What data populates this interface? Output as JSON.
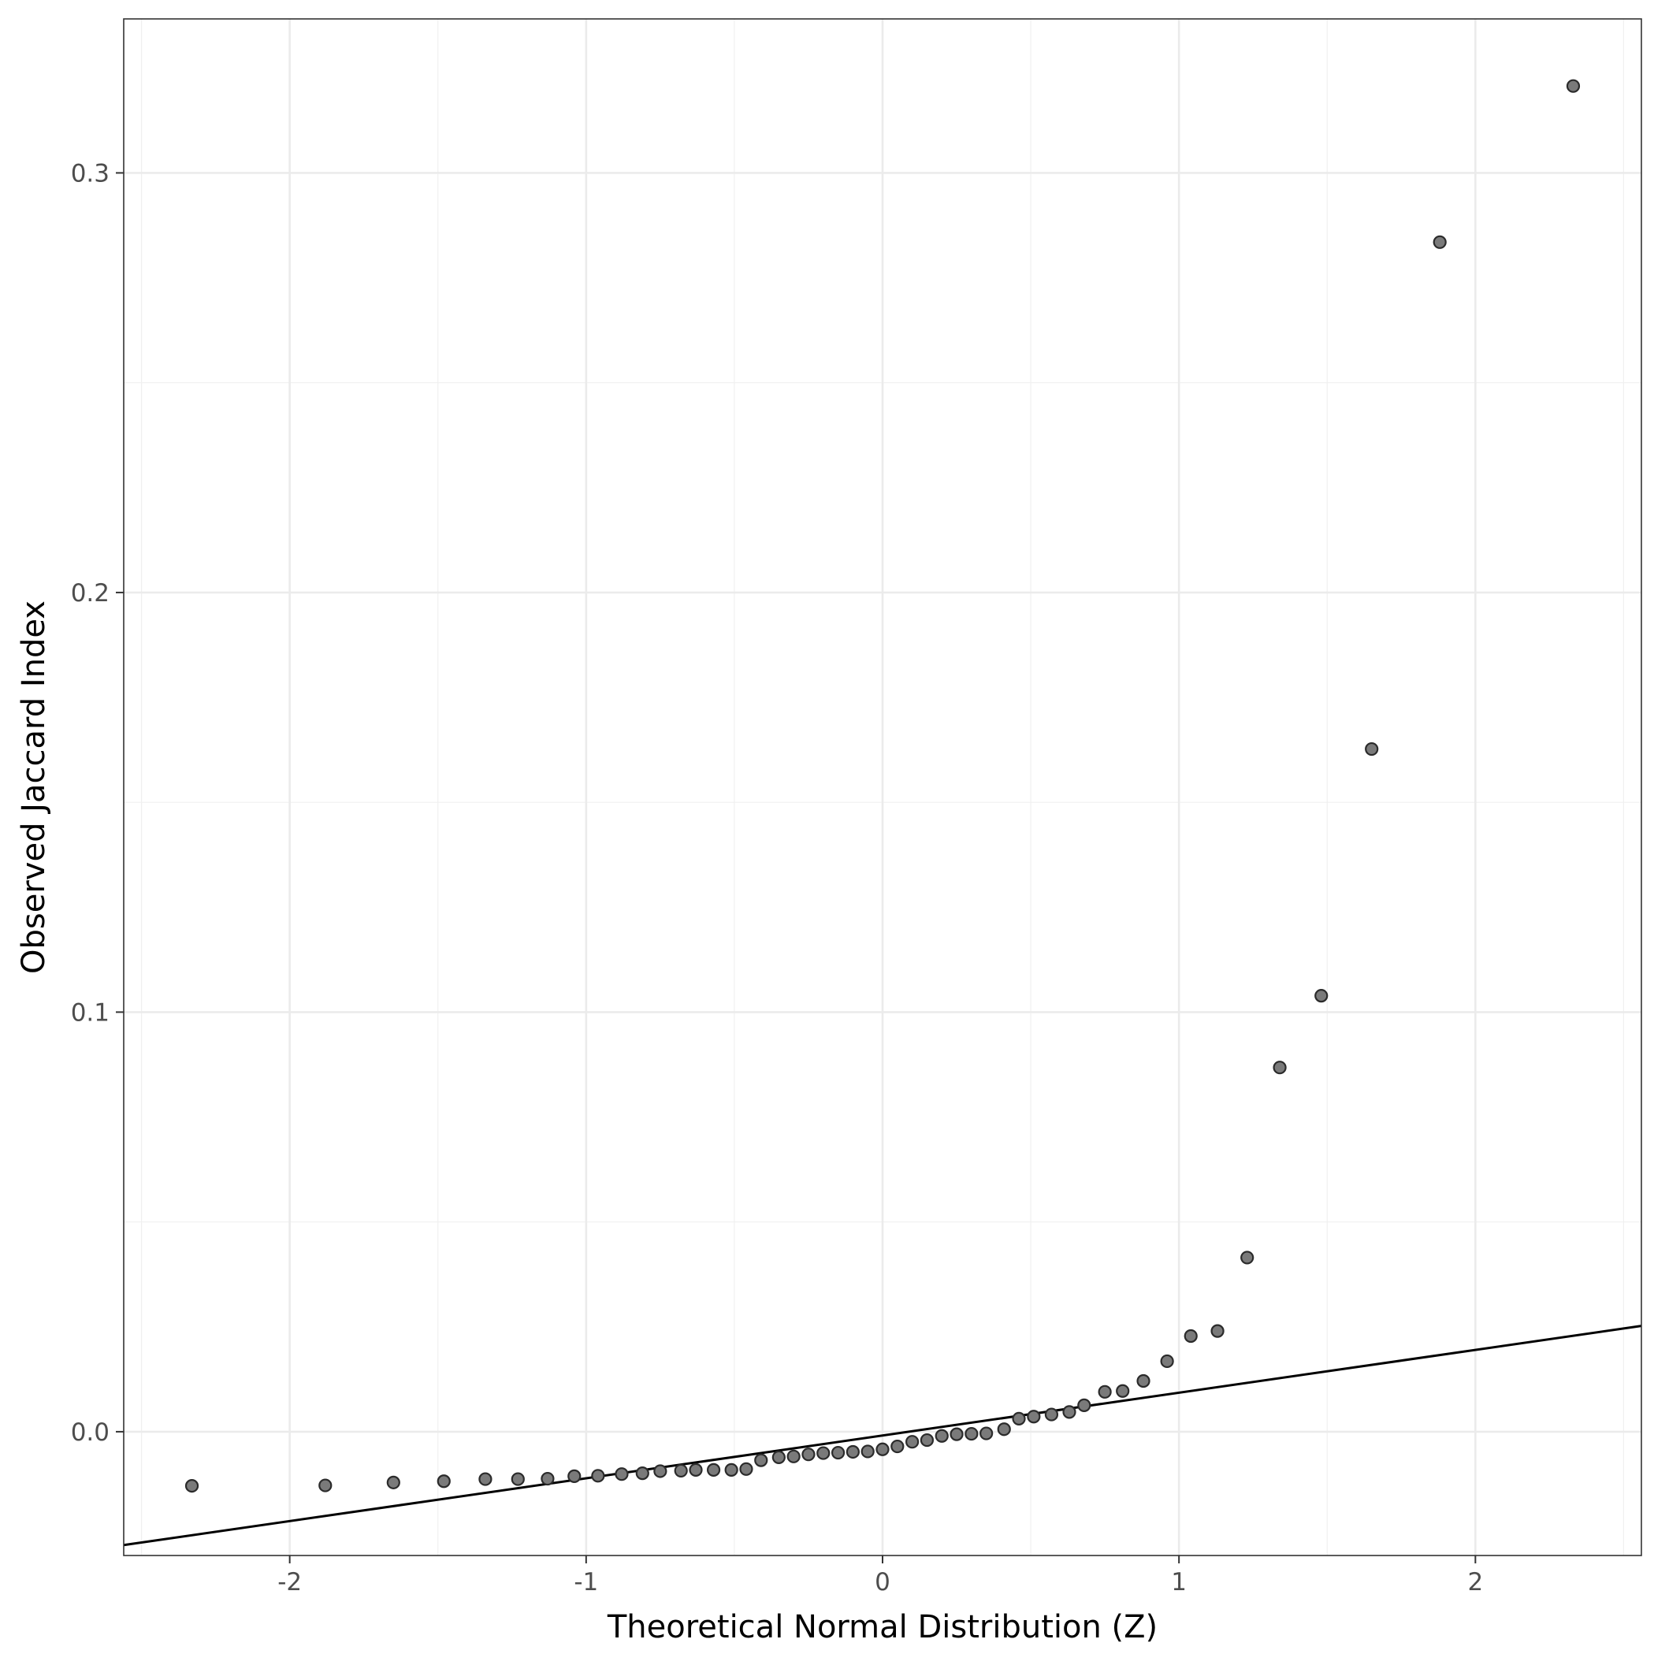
{
  "chart_data": {
    "type": "scatter",
    "title": "",
    "xlabel": "Theoretical Normal Distribution (Z)",
    "ylabel": "Observed Jaccard Index",
    "xlim": [
      -2.56,
      2.56
    ],
    "ylim": [
      -0.0295,
      0.3367
    ],
    "x_ticks": [
      -2,
      -1,
      0,
      1,
      2
    ],
    "x_tick_labels": [
      "-2",
      "-1",
      "0",
      "1",
      "2"
    ],
    "y_ticks": [
      0.0,
      0.1,
      0.2,
      0.3
    ],
    "y_tick_labels": [
      "0.0",
      "0.1",
      "0.2",
      "0.3"
    ],
    "grid": true,
    "reference_line": {
      "intercept": -0.0009,
      "slope": 0.0102
    },
    "points": [
      {
        "x": -2.33,
        "y": -0.0129
      },
      {
        "x": -1.88,
        "y": -0.0128
      },
      {
        "x": -1.65,
        "y": -0.0121
      },
      {
        "x": -1.48,
        "y": -0.0118
      },
      {
        "x": -1.34,
        "y": -0.0113
      },
      {
        "x": -1.23,
        "y": -0.0113
      },
      {
        "x": -1.13,
        "y": -0.0112
      },
      {
        "x": -1.04,
        "y": -0.0106
      },
      {
        "x": -0.96,
        "y": -0.0105
      },
      {
        "x": -0.88,
        "y": -0.0101
      },
      {
        "x": -0.81,
        "y": -0.0099
      },
      {
        "x": -0.75,
        "y": -0.0094
      },
      {
        "x": -0.68,
        "y": -0.0093
      },
      {
        "x": -0.63,
        "y": -0.0091
      },
      {
        "x": -0.57,
        "y": -0.0091
      },
      {
        "x": -0.51,
        "y": -0.0091
      },
      {
        "x": -0.46,
        "y": -0.0089
      },
      {
        "x": -0.41,
        "y": -0.0068
      },
      {
        "x": -0.35,
        "y": -0.0061
      },
      {
        "x": -0.3,
        "y": -0.0059
      },
      {
        "x": -0.25,
        "y": -0.0054
      },
      {
        "x": -0.2,
        "y": -0.0051
      },
      {
        "x": -0.15,
        "y": -0.005
      },
      {
        "x": -0.1,
        "y": -0.0048
      },
      {
        "x": -0.05,
        "y": -0.0047
      },
      {
        "x": 0.0,
        "y": -0.0042
      },
      {
        "x": 0.05,
        "y": -0.0035
      },
      {
        "x": 0.1,
        "y": -0.0024
      },
      {
        "x": 0.15,
        "y": -0.002
      },
      {
        "x": 0.2,
        "y": -0.001
      },
      {
        "x": 0.25,
        "y": -0.0006
      },
      {
        "x": 0.3,
        "y": -0.0005
      },
      {
        "x": 0.35,
        "y": -0.0004
      },
      {
        "x": 0.41,
        "y": 0.0006
      },
      {
        "x": 0.46,
        "y": 0.0031
      },
      {
        "x": 0.51,
        "y": 0.0036
      },
      {
        "x": 0.57,
        "y": 0.0041
      },
      {
        "x": 0.63,
        "y": 0.0047
      },
      {
        "x": 0.68,
        "y": 0.0063
      },
      {
        "x": 0.75,
        "y": 0.0095
      },
      {
        "x": 0.81,
        "y": 0.0097
      },
      {
        "x": 0.88,
        "y": 0.0121
      },
      {
        "x": 0.96,
        "y": 0.0168
      },
      {
        "x": 1.04,
        "y": 0.0228
      },
      {
        "x": 1.13,
        "y": 0.024
      },
      {
        "x": 1.23,
        "y": 0.0415
      },
      {
        "x": 1.34,
        "y": 0.0868
      },
      {
        "x": 1.48,
        "y": 0.1039
      },
      {
        "x": 1.65,
        "y": 0.1627
      },
      {
        "x": 1.88,
        "y": 0.2835
      },
      {
        "x": 2.33,
        "y": 0.3207
      }
    ]
  }
}
